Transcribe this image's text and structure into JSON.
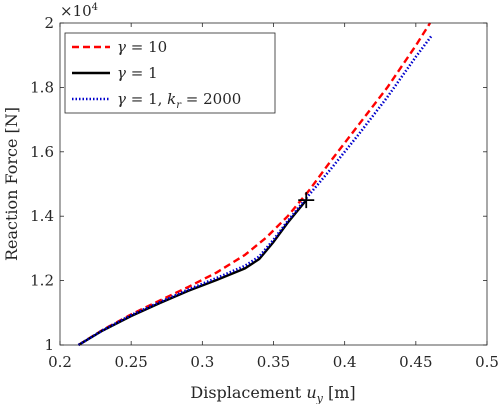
{
  "chart_data": {
    "type": "line",
    "xlabel": "Displacement u_y [m]",
    "xlabel_main": "Displacement ",
    "xlabel_var": "u",
    "xlabel_sub": "y",
    "xlabel_unit": " [m]",
    "ylabel": "Reaction Force [N]",
    "y_exponent_label": "×10^4",
    "y_exponent_base": "×10",
    "y_exponent_power": "4",
    "xlim": [
      0.2,
      0.5
    ],
    "ylim": [
      10000,
      20000
    ],
    "x_ticks": [
      0.2,
      0.25,
      0.3,
      0.35,
      0.4,
      0.45,
      0.5
    ],
    "x_tick_labels": [
      "0.2",
      "0.25",
      "0.3",
      "0.35",
      "0.4",
      "0.45",
      "0.5"
    ],
    "y_ticks": [
      10000,
      12000,
      14000,
      16000,
      18000,
      20000
    ],
    "y_tick_labels": [
      "1",
      "1.2",
      "1.4",
      "1.6",
      "1.8",
      "2"
    ],
    "grid": false,
    "legend_position": "top-left",
    "series": [
      {
        "name": "γ = 10",
        "color": "#ff0000",
        "style": "dashed",
        "x": [
          0.213,
          0.23,
          0.25,
          0.27,
          0.29,
          0.31,
          0.33,
          0.345,
          0.36,
          0.375,
          0.39,
          0.41,
          0.43,
          0.45,
          0.46
        ],
        "y": [
          10000,
          10470,
          10950,
          11380,
          11800,
          12250,
          12800,
          13340,
          14000,
          14800,
          15700,
          16850,
          18000,
          19300,
          20000
        ]
      },
      {
        "name": "γ = 1",
        "color": "#000000",
        "style": "solid",
        "x": [
          0.213,
          0.23,
          0.25,
          0.27,
          0.29,
          0.31,
          0.33,
          0.34,
          0.35,
          0.36,
          0.373
        ],
        "y": [
          10000,
          10450,
          10900,
          11300,
          11680,
          12020,
          12380,
          12670,
          13200,
          13800,
          14500
        ]
      },
      {
        "name": "γ = 1, k_r = 2000",
        "color": "#0000cc",
        "style": "dotted",
        "x": [
          0.213,
          0.23,
          0.25,
          0.27,
          0.29,
          0.31,
          0.33,
          0.34,
          0.35,
          0.36,
          0.373,
          0.39,
          0.41,
          0.43,
          0.45,
          0.461
        ],
        "y": [
          10000,
          10460,
          10930,
          11330,
          11720,
          12080,
          12460,
          12750,
          13270,
          13850,
          14560,
          15450,
          16550,
          17700,
          18950,
          19600
        ]
      }
    ],
    "marker": {
      "type": "plus",
      "x": 0.373,
      "y": 14500,
      "color": "#000000"
    },
    "legend": {
      "entries": [
        {
          "var": "γ",
          "rest": " = 10"
        },
        {
          "var": "γ",
          "rest": " = 1"
        },
        {
          "var": "γ",
          "rest": " = 1, ",
          "var2": "k",
          "sub2": "r",
          "rest2": " = 2000"
        }
      ]
    }
  }
}
